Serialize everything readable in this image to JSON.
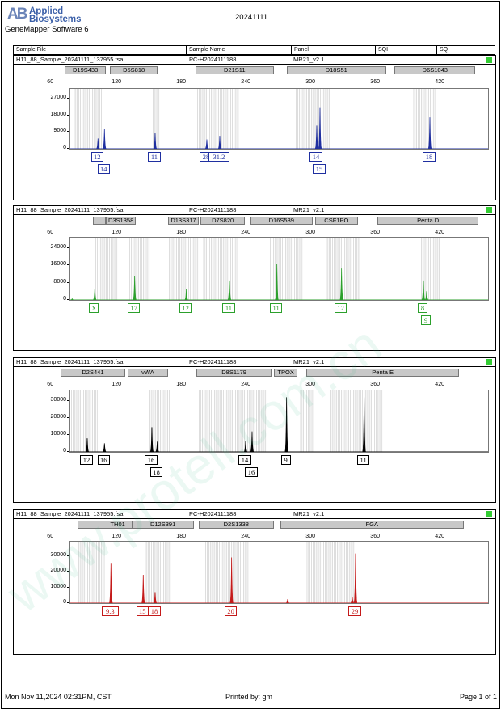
{
  "header": {
    "logo_mark": "AB",
    "logo_line1": "Applied",
    "logo_line2": "Biosystems",
    "software": "GeneMapper Software 6",
    "date": "20241111",
    "columns": [
      "Sample File",
      "Sample Name",
      "Panel",
      "SQI",
      "SQ"
    ]
  },
  "watermark": "www.protell.com.cn",
  "footer": {
    "printed_on": "Mon Nov 11,2024 02:31PM, CST",
    "printed_by": "Printed by: gm",
    "page": "Page 1 of 1"
  },
  "panels": [
    {
      "sample_file": "H11_88_Sample_20241111_137955.fsa",
      "sample_name": "PC-H2024111188",
      "panel": "MR21_v2.1",
      "sq_color": "#33cc33",
      "dye_color": "#1f2fa0",
      "markers": [
        {
          "name": "D19S433",
          "start": 72,
          "end": 110
        },
        {
          "name": "D5S818",
          "start": 114,
          "end": 158
        },
        {
          "name": "D21S11",
          "start": 193,
          "end": 266
        },
        {
          "name": "D18S51",
          "start": 278,
          "end": 370
        },
        {
          "name": "D6S1043",
          "start": 378,
          "end": 453
        }
      ],
      "bins": [
        [
          80,
          108
        ],
        [
          153,
          159
        ],
        [
          193,
          233
        ],
        [
          286,
          318
        ],
        [
          395,
          415
        ]
      ],
      "y_ticks": [
        0,
        9000,
        18000,
        27000
      ],
      "y_max": 31500,
      "peaks": [
        {
          "bp": 102,
          "h": 5500
        },
        {
          "bp": 108,
          "h": 10500
        },
        {
          "bp": 155,
          "h": 8500
        },
        {
          "bp": 203,
          "h": 5000
        },
        {
          "bp": 215,
          "h": 7000
        },
        {
          "bp": 305,
          "h": 12500
        },
        {
          "bp": 308,
          "h": 22500
        },
        {
          "bp": 410,
          "h": 17000
        }
      ],
      "alleles": [
        {
          "label": "12",
          "bp": 102,
          "row": 0
        },
        {
          "label": "14",
          "bp": 108,
          "row": 1
        },
        {
          "label": "11",
          "bp": 155,
          "row": 0
        },
        {
          "label": "28",
          "bp": 203,
          "row": 0
        },
        {
          "label": "31.2",
          "bp": 215,
          "row": 0
        },
        {
          "label": "14",
          "bp": 305,
          "row": 0
        },
        {
          "label": "15",
          "bp": 308,
          "row": 1
        },
        {
          "label": "18",
          "bp": 410,
          "row": 0
        }
      ]
    },
    {
      "sample_file": "H11_88_Sample_20241111_137955.fsa",
      "sample_name": "PC-H2024111188",
      "panel": "MR21_v2.1",
      "sq_color": "#33cc33",
      "dye_color": "#2ca02c",
      "markers": [
        {
          "name": "...",
          "start": 98,
          "end": 110
        },
        {
          "name": "D3S1358",
          "start": 110,
          "end": 138
        },
        {
          "name": "D13S317",
          "start": 168,
          "end": 196
        },
        {
          "name": "D7S820",
          "start": 198,
          "end": 239
        },
        {
          "name": "D16S539",
          "start": 244,
          "end": 302
        },
        {
          "name": "CSF1PO",
          "start": 304,
          "end": 344
        },
        {
          "name": "Penta D",
          "start": 362,
          "end": 456
        }
      ],
      "bins": [
        [
          100,
          120
        ],
        [
          130,
          150
        ],
        [
          168,
          196
        ],
        [
          200,
          232
        ],
        [
          262,
          292
        ],
        [
          314,
          346
        ],
        [
          402,
          420
        ]
      ],
      "y_ticks": [
        0,
        8000,
        16000,
        24000
      ],
      "y_max": 28000,
      "peaks": [
        {
          "bp": 78,
          "h": 500
        },
        {
          "bp": 99,
          "h": 5000
        },
        {
          "bp": 136,
          "h": 11000
        },
        {
          "bp": 184,
          "h": 5000
        },
        {
          "bp": 224,
          "h": 9000
        },
        {
          "bp": 268,
          "h": 16500
        },
        {
          "bp": 328,
          "h": 14500
        },
        {
          "bp": 404,
          "h": 9000
        },
        {
          "bp": 407,
          "h": 4000
        }
      ],
      "alleles": [
        {
          "label": "X",
          "bp": 99,
          "row": 0
        },
        {
          "label": "17",
          "bp": 136,
          "row": 0
        },
        {
          "label": "12",
          "bp": 184,
          "row": 0
        },
        {
          "label": "11",
          "bp": 224,
          "row": 0
        },
        {
          "label": "11",
          "bp": 268,
          "row": 0
        },
        {
          "label": "12",
          "bp": 328,
          "row": 0
        },
        {
          "label": "8",
          "bp": 404,
          "row": 0
        },
        {
          "label": "9",
          "bp": 407,
          "row": 1
        }
      ]
    },
    {
      "sample_file": "H11_88_Sample_20241111_137955.fsa",
      "sample_name": "PC-H2024111188",
      "panel": "MR21_v2.1",
      "sq_color": "#33cc33",
      "dye_color": "#000000",
      "markers": [
        {
          "name": "D2S441",
          "start": 68,
          "end": 128
        },
        {
          "name": "vWA",
          "start": 130,
          "end": 168
        },
        {
          "name": "D8S1179",
          "start": 194,
          "end": 264
        },
        {
          "name": "TPOX",
          "start": 266,
          "end": 288
        },
        {
          "name": "Penta E",
          "start": 296,
          "end": 438
        }
      ],
      "bins": [
        [
          76,
          102
        ],
        [
          150,
          170
        ],
        [
          196,
          258
        ],
        [
          290,
          302
        ],
        [
          318,
          366
        ]
      ],
      "y_ticks": [
        0,
        10000,
        20000,
        30000
      ],
      "y_max": 35000,
      "peaks": [
        {
          "bp": 92,
          "h": 8000
        },
        {
          "bp": 108,
          "h": 5000
        },
        {
          "bp": 152,
          "h": 14500
        },
        {
          "bp": 157,
          "h": 6000
        },
        {
          "bp": 239,
          "h": 6500
        },
        {
          "bp": 245,
          "h": 12000
        },
        {
          "bp": 277,
          "h": 32000
        },
        {
          "bp": 349,
          "h": 32000
        }
      ],
      "alleles": [
        {
          "label": "12",
          "bp": 92,
          "row": 0
        },
        {
          "label": "16",
          "bp": 108,
          "row": 0
        },
        {
          "label": "16",
          "bp": 152,
          "row": 0
        },
        {
          "label": "18",
          "bp": 157,
          "row": 1
        },
        {
          "label": "14",
          "bp": 239,
          "row": 0
        },
        {
          "label": "16",
          "bp": 245,
          "row": 1
        },
        {
          "label": "9",
          "bp": 277,
          "row": 0
        },
        {
          "label": "11",
          "bp": 349,
          "row": 0
        }
      ]
    },
    {
      "sample_file": "H11_88_Sample_20241111_137955.fsa",
      "sample_name": "PC-H2024111188",
      "panel": "MR21_v2.1",
      "sq_color": "#33cc33",
      "dye_color": "#c41a1a",
      "markers": [
        {
          "name": "TH01",
          "start": 84,
          "end": 158
        },
        {
          "name": "D12S391",
          "start": 134,
          "end": 192
        },
        {
          "name": "D2S1338",
          "start": 196,
          "end": 266
        },
        {
          "name": "FGA",
          "start": 272,
          "end": 442
        }
      ],
      "bins": [
        [
          84,
          108
        ],
        [
          146,
          170
        ],
        [
          202,
          242
        ],
        [
          296,
          340
        ]
      ],
      "y_ticks": [
        0,
        10000,
        20000,
        30000
      ],
      "y_max": 38000,
      "peaks": [
        {
          "bp": 114,
          "h": 25000
        },
        {
          "bp": 144,
          "h": 18000
        },
        {
          "bp": 155,
          "h": 7000
        },
        {
          "bp": 226,
          "h": 29000
        },
        {
          "bp": 278,
          "h": 2500
        },
        {
          "bp": 338,
          "h": 4000
        },
        {
          "bp": 341,
          "h": 31500
        }
      ],
      "alleles": [
        {
          "label": "9.3",
          "bp": 114,
          "row": 0
        },
        {
          "label": "15",
          "bp": 144,
          "row": 0
        },
        {
          "label": "18",
          "bp": 155,
          "row": 0
        },
        {
          "label": "20",
          "bp": 226,
          "row": 0
        },
        {
          "label": "29",
          "bp": 341,
          "row": 0
        }
      ]
    }
  ],
  "chart_data": [
    {
      "type": "line",
      "title": "",
      "x_axis": "bp",
      "x_ticks": [
        60,
        120,
        180,
        240,
        300,
        360,
        420
      ],
      "xlim": [
        60,
        460
      ],
      "ylim": [
        0,
        31500
      ],
      "series": [
        {
          "values": [
            [
              102,
              5500
            ],
            [
              108,
              10500
            ],
            [
              155,
              8500
            ],
            [
              203,
              5000
            ],
            [
              215,
              7000
            ],
            [
              305,
              12500
            ],
            [
              308,
              22500
            ],
            [
              410,
              17000
            ]
          ]
        }
      ]
    },
    {
      "type": "line",
      "title": "",
      "x_axis": "bp",
      "x_ticks": [
        60,
        120,
        180,
        240,
        300,
        360,
        420
      ],
      "xlim": [
        60,
        460
      ],
      "ylim": [
        0,
        28000
      ],
      "series": [
        {
          "values": [
            [
              78,
              500
            ],
            [
              99,
              5000
            ],
            [
              136,
              11000
            ],
            [
              184,
              5000
            ],
            [
              224,
              9000
            ],
            [
              268,
              16500
            ],
            [
              328,
              14500
            ],
            [
              404,
              9000
            ],
            [
              407,
              4000
            ]
          ]
        }
      ]
    },
    {
      "type": "line",
      "title": "",
      "x_axis": "bp",
      "x_ticks": [
        60,
        120,
        180,
        240,
        300,
        360,
        420
      ],
      "xlim": [
        60,
        460
      ],
      "ylim": [
        0,
        35000
      ],
      "series": [
        {
          "values": [
            [
              92,
              8000
            ],
            [
              108,
              5000
            ],
            [
              152,
              14500
            ],
            [
              157,
              6000
            ],
            [
              239,
              6500
            ],
            [
              245,
              12000
            ],
            [
              277,
              32000
            ],
            [
              349,
              32000
            ]
          ]
        }
      ]
    },
    {
      "type": "line",
      "title": "",
      "x_axis": "bp",
      "x_ticks": [
        60,
        120,
        180,
        240,
        300,
        360,
        420
      ],
      "xlim": [
        60,
        460
      ],
      "ylim": [
        0,
        38000
      ],
      "series": [
        {
          "values": [
            [
              114,
              25000
            ],
            [
              144,
              18000
            ],
            [
              155,
              7000
            ],
            [
              226,
              29000
            ],
            [
              278,
              2500
            ],
            [
              338,
              4000
            ],
            [
              341,
              31500
            ]
          ]
        }
      ]
    }
  ]
}
